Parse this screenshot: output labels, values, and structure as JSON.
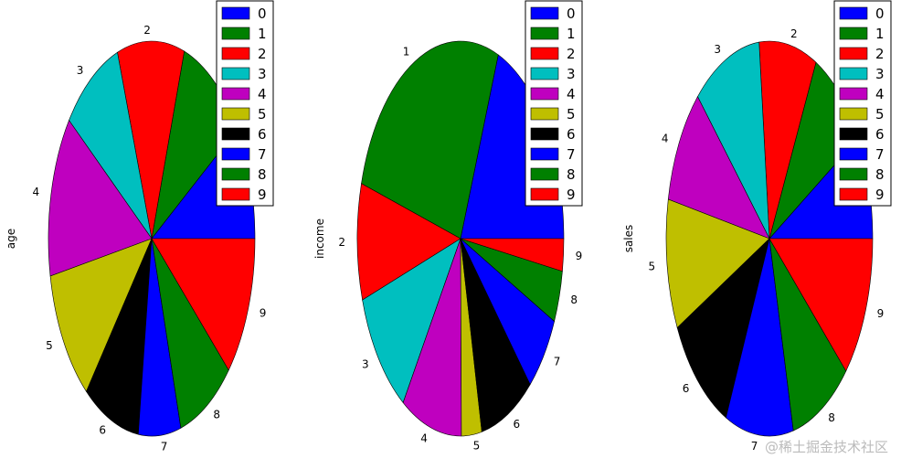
{
  "chart_data": [
    {
      "type": "pie",
      "ylabel": "age",
      "categories": [
        "0",
        "1",
        "2",
        "3",
        "4",
        "5",
        "6",
        "7",
        "8",
        "9"
      ],
      "values": [
        0.085,
        0.095,
        0.095,
        0.085,
        0.12,
        0.1,
        0.08,
        0.06,
        0.08,
        0.105
      ],
      "colors": [
        "#0000ff",
        "#008000",
        "#ff0000",
        "#00bfbf",
        "#bf00bf",
        "#bfbf00",
        "#000000",
        "#0000ff",
        "#008000",
        "#ff0000"
      ],
      "legend": {
        "position": "top-right",
        "entries": [
          "0",
          "1",
          "2",
          "3",
          "4",
          "5",
          "6",
          "7",
          "8",
          "9"
        ]
      }
    },
    {
      "type": "pie",
      "ylabel": "income",
      "categories": [
        "0",
        "1",
        "2",
        "3",
        "4",
        "5",
        "6",
        "7",
        "8",
        "9"
      ],
      "values": [
        0.18,
        0.25,
        0.09,
        0.1,
        0.09,
        0.03,
        0.08,
        0.06,
        0.04,
        0.025
      ],
      "colors": [
        "#0000ff",
        "#008000",
        "#ff0000",
        "#00bfbf",
        "#bf00bf",
        "#bfbf00",
        "#000000",
        "#0000ff",
        "#008000",
        "#ff0000"
      ],
      "legend": {
        "position": "top-right",
        "entries": [
          "0",
          "1",
          "2",
          "3",
          "4",
          "5",
          "6",
          "7",
          "8",
          "9"
        ]
      }
    },
    {
      "type": "pie",
      "ylabel": "sales",
      "categories": [
        "0",
        "1",
        "2",
        "3",
        "4",
        "5",
        "6",
        "7",
        "8",
        "9"
      ],
      "values": [
        0.08,
        0.085,
        0.085,
        0.1,
        0.09,
        0.1,
        0.1,
        0.1,
        0.09,
        0.11
      ],
      "colors": [
        "#0000ff",
        "#008000",
        "#ff0000",
        "#00bfbf",
        "#bf00bf",
        "#bfbf00",
        "#000000",
        "#0000ff",
        "#008000",
        "#ff0000"
      ],
      "legend": {
        "position": "top-right",
        "entries": [
          "0",
          "1",
          "2",
          "3",
          "4",
          "5",
          "6",
          "7",
          "8",
          "9"
        ]
      }
    }
  ],
  "watermark": "@稀土掘金技术社区"
}
